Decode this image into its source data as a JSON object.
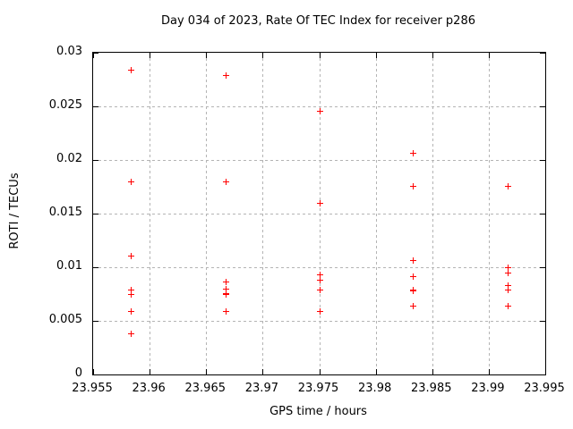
{
  "title": "Day 034 of 2023, Rate Of TEC Index for receiver p286",
  "chart_data": {
    "type": "scatter",
    "title": "Day 034 of 2023, Rate Of TEC Index for receiver p286",
    "xlabel": "GPS time / hours",
    "ylabel": "ROTI / TECUs",
    "xlim": [
      23.955,
      23.995
    ],
    "ylim": [
      0,
      0.03
    ],
    "xticks": [
      23.955,
      23.96,
      23.965,
      23.97,
      23.975,
      23.98,
      23.985,
      23.99,
      23.995
    ],
    "xtick_labels": [
      "23.955",
      "23.96",
      "23.965",
      "23.97",
      "23.975",
      "23.98",
      "23.985",
      "23.99",
      "23.995"
    ],
    "yticks": [
      0,
      0.005,
      0.01,
      0.015,
      0.02,
      0.025,
      0.03
    ],
    "ytick_labels": [
      "0",
      "0.005",
      "0.01",
      "0.015",
      "0.02",
      "0.025",
      "0.03"
    ],
    "grid": true,
    "legend": "none",
    "marker": "plus",
    "marker_color": "#ff0000",
    "series": [
      {
        "name": "ROTI",
        "points": [
          [
            23.9583,
            0.0284
          ],
          [
            23.9583,
            0.018
          ],
          [
            23.9583,
            0.0111
          ],
          [
            23.9583,
            0.0079
          ],
          [
            23.9583,
            0.0075
          ],
          [
            23.9583,
            0.0059
          ],
          [
            23.9583,
            0.0038
          ],
          [
            23.9667,
            0.0279
          ],
          [
            23.9667,
            0.018
          ],
          [
            23.9667,
            0.0087
          ],
          [
            23.9667,
            0.008
          ],
          [
            23.9667,
            0.0076
          ],
          [
            23.9667,
            0.0075
          ],
          [
            23.9667,
            0.0059
          ],
          [
            23.975,
            0.0246
          ],
          [
            23.975,
            0.016
          ],
          [
            23.975,
            0.0093
          ],
          [
            23.975,
            0.0088
          ],
          [
            23.975,
            0.0079
          ],
          [
            23.975,
            0.0059
          ],
          [
            23.9833,
            0.0207
          ],
          [
            23.9833,
            0.0176
          ],
          [
            23.9833,
            0.0107
          ],
          [
            23.9833,
            0.0092
          ],
          [
            23.9833,
            0.0079
          ],
          [
            23.9833,
            0.0078
          ],
          [
            23.9833,
            0.0064
          ],
          [
            23.9917,
            0.0176
          ],
          [
            23.9917,
            0.01
          ],
          [
            23.9917,
            0.0095
          ],
          [
            23.9917,
            0.0083
          ],
          [
            23.9917,
            0.0079
          ],
          [
            23.9917,
            0.0064
          ]
        ]
      }
    ]
  }
}
